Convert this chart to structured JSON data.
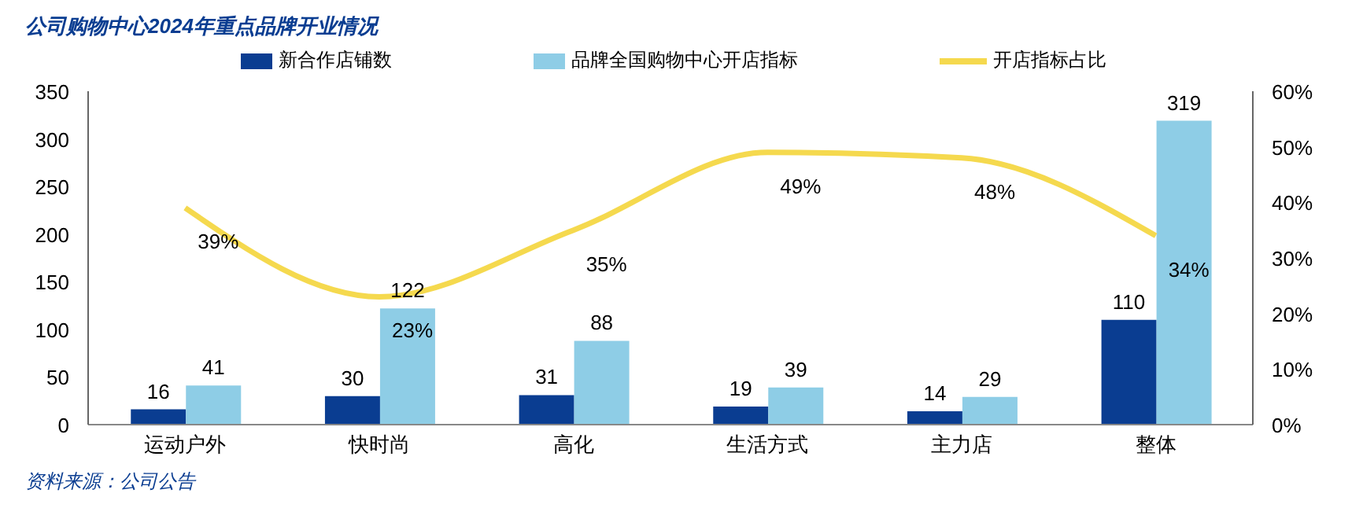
{
  "chart_data": {
    "type": "bar",
    "title": "公司购物中心2024年重点品牌开业情况",
    "categories": [
      "运动户外",
      "快时尚",
      "高化",
      "生活方式",
      "主力店",
      "整体"
    ],
    "series": [
      {
        "name": "新合作店铺数",
        "color": "#0a3d91",
        "values": [
          16,
          30,
          31,
          19,
          14,
          110
        ],
        "value_labels": [
          "16",
          "30",
          "31",
          "19",
          "14",
          "110"
        ]
      },
      {
        "name": "品牌全国购物中心开店指标",
        "color": "#8ecde6",
        "values": [
          41,
          122,
          88,
          39,
          29,
          319
        ],
        "value_labels": [
          "41",
          "122",
          "88",
          "39",
          "29",
          "319"
        ]
      },
      {
        "name": "开店指标占比",
        "type": "line",
        "axis": "y2",
        "color": "#f5d94e",
        "values": [
          39,
          23,
          35,
          49,
          48,
          34
        ],
        "value_labels": [
          "39%",
          "23%",
          "35%",
          "49%",
          "48%",
          "34%"
        ]
      }
    ],
    "ylim": [
      0,
      350
    ],
    "yticks": [
      0,
      50,
      100,
      150,
      200,
      250,
      300,
      350
    ],
    "y2lim": [
      0,
      60
    ],
    "y2ticks": [
      {
        "value": 0,
        "label": "0%"
      },
      {
        "value": 10,
        "label": "10%"
      },
      {
        "value": 20,
        "label": "20%"
      },
      {
        "value": 30,
        "label": "30%"
      },
      {
        "value": 40,
        "label": "40%"
      },
      {
        "value": 50,
        "label": "50%"
      },
      {
        "value": 60,
        "label": "60%"
      }
    ],
    "legend": "top",
    "marker": "none",
    "grid": false,
    "annotations": [
      "资料来源：公司公告"
    ]
  }
}
